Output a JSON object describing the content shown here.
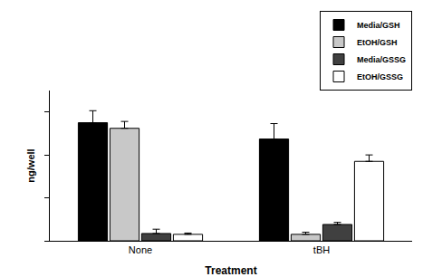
{
  "chart_data": {
    "type": "bar",
    "x_label": "Treatment",
    "y_label": "ng/well",
    "categories": [
      "None",
      "tBH"
    ],
    "series": [
      {
        "name": "Media/GSH",
        "color": "#000000",
        "values": [
          2.75,
          2.37
        ],
        "errors": [
          0.28,
          0.36
        ]
      },
      {
        "name": "EtOH/GSH",
        "color": "#c8c8c8",
        "values": [
          2.62,
          0.15
        ],
        "errors": [
          0.16,
          0.05
        ]
      },
      {
        "name": "Media/GSSG",
        "color": "#404040",
        "values": [
          0.17,
          0.38
        ],
        "errors": [
          0.1,
          0.05
        ]
      },
      {
        "name": "EtOH/GSSG",
        "color": "#ffffff",
        "values": [
          0.15,
          1.85
        ],
        "errors": [
          0.03,
          0.15
        ]
      }
    ],
    "ylim": [
      0,
      3.5
    ],
    "yticks": [
      0,
      1,
      2,
      3
    ],
    "grid": false,
    "legend": "top right",
    "tick_labels": "x"
  }
}
